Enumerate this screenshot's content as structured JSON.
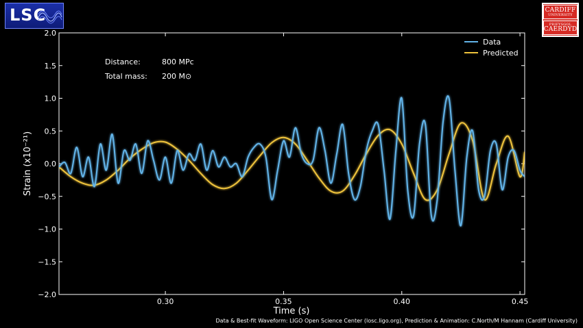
{
  "logos": {
    "lsc_text": "LSC",
    "cardiff_top_line1": "CARDIFF",
    "cardiff_top_line2": "UNIVERSITY",
    "cardiff_bottom_line1": "PRIFYSGOL",
    "cardiff_bottom_line2": "CAERDYD"
  },
  "credit": "Data & Best-fit Waveform: LIGO Open Science Center (losc.ligo.org), Prediction & Animation: C.North/M Hannam (Cardiff University)",
  "annotations": {
    "distance_label": "Distance:",
    "distance_value": "800 MPc",
    "mass_label": "Total mass:",
    "mass_value": "200 M⊙"
  },
  "colors": {
    "data": "#63b5ea",
    "predicted": "#f0c43c",
    "background": "#000000",
    "axes": "#ffffff"
  },
  "chart_data": {
    "type": "line",
    "title": "",
    "xlabel": "Time (s)",
    "ylabel": "Strain (x10⁻²¹)",
    "xlim": [
      0.255,
      0.452
    ],
    "ylim": [
      -2.0,
      2.0
    ],
    "xticks": [
      0.3,
      0.35,
      0.4,
      0.45
    ],
    "xtick_labels": [
      "0.30",
      "0.35",
      "0.40",
      "0.45"
    ],
    "yticks": [
      -2.0,
      -1.5,
      -1.0,
      -0.5,
      0.0,
      0.5,
      1.0,
      1.5,
      2.0
    ],
    "ytick_labels": [
      "−2.0",
      "−1.5",
      "−1.0",
      "−0.5",
      "0.0",
      "0.5",
      "1.0",
      "1.5",
      "2.0"
    ],
    "legend": "top-right",
    "grid": false,
    "series": [
      {
        "name": "Data",
        "x": [
          0.255,
          0.2575,
          0.26,
          0.2625,
          0.265,
          0.2675,
          0.27,
          0.2725,
          0.275,
          0.2775,
          0.28,
          0.2825,
          0.285,
          0.2875,
          0.29,
          0.2925,
          0.295,
          0.2975,
          0.3,
          0.3025,
          0.305,
          0.3075,
          0.31,
          0.3125,
          0.315,
          0.3175,
          0.32,
          0.3225,
          0.325,
          0.3275,
          0.33,
          0.3325,
          0.335,
          0.3375,
          0.34,
          0.3425,
          0.345,
          0.3475,
          0.35,
          0.3525,
          0.355,
          0.3575,
          0.36,
          0.3625,
          0.365,
          0.3675,
          0.37,
          0.3725,
          0.375,
          0.3775,
          0.38,
          0.3825,
          0.385,
          0.3875,
          0.39,
          0.3925,
          0.395,
          0.3975,
          0.4,
          0.4025,
          0.405,
          0.4075,
          0.41,
          0.4125,
          0.415,
          0.4175,
          0.42,
          0.4225,
          0.425,
          0.4275,
          0.43,
          0.4325,
          0.435,
          0.4375,
          0.44,
          0.4425,
          0.445,
          0.4475,
          0.45,
          0.452
        ],
        "y": [
          -0.05,
          0.02,
          -0.15,
          0.25,
          -0.2,
          0.1,
          -0.35,
          0.3,
          -0.1,
          0.45,
          -0.3,
          0.2,
          0.05,
          0.3,
          -0.15,
          0.35,
          0.05,
          -0.25,
          0.1,
          -0.3,
          0.2,
          -0.1,
          0.15,
          0.05,
          0.3,
          -0.1,
          0.2,
          -0.05,
          0.1,
          -0.05,
          0.0,
          -0.2,
          0.1,
          0.25,
          0.3,
          0.1,
          -0.55,
          -0.1,
          0.35,
          0.1,
          0.55,
          0.15,
          0.0,
          0.05,
          0.55,
          0.2,
          -0.3,
          0.15,
          0.6,
          -0.15,
          -0.55,
          -0.35,
          0.2,
          0.5,
          0.6,
          -0.1,
          -0.85,
          0.2,
          1.0,
          -0.4,
          -0.8,
          0.3,
          0.6,
          -0.8,
          -0.55,
          0.65,
          1.0,
          -0.1,
          -0.95,
          0.1,
          0.5,
          -0.4,
          -0.5,
          0.2,
          0.3,
          -0.4,
          0.1,
          0.2,
          -0.1,
          -0.2
        ]
      },
      {
        "name": "Predicted",
        "x": [
          0.255,
          0.26,
          0.265,
          0.27,
          0.275,
          0.28,
          0.285,
          0.29,
          0.295,
          0.3,
          0.305,
          0.31,
          0.315,
          0.32,
          0.325,
          0.33,
          0.335,
          0.34,
          0.345,
          0.35,
          0.355,
          0.36,
          0.365,
          0.37,
          0.375,
          0.38,
          0.385,
          0.39,
          0.395,
          0.4,
          0.405,
          0.41,
          0.415,
          0.42,
          0.425,
          0.43,
          0.435,
          0.44,
          0.445,
          0.45,
          0.452
        ],
        "y": [
          -0.05,
          -0.2,
          -0.3,
          -0.33,
          -0.25,
          -0.1,
          0.08,
          0.22,
          0.32,
          0.33,
          0.22,
          0.05,
          -0.15,
          -0.32,
          -0.38,
          -0.3,
          -0.1,
          0.12,
          0.32,
          0.4,
          0.3,
          0.05,
          -0.22,
          -0.42,
          -0.42,
          -0.18,
          0.15,
          0.43,
          0.52,
          0.3,
          -0.15,
          -0.55,
          -0.4,
          0.15,
          0.62,
          0.35,
          -0.55,
          0.0,
          0.42,
          -0.2,
          0.18
        ]
      }
    ]
  }
}
